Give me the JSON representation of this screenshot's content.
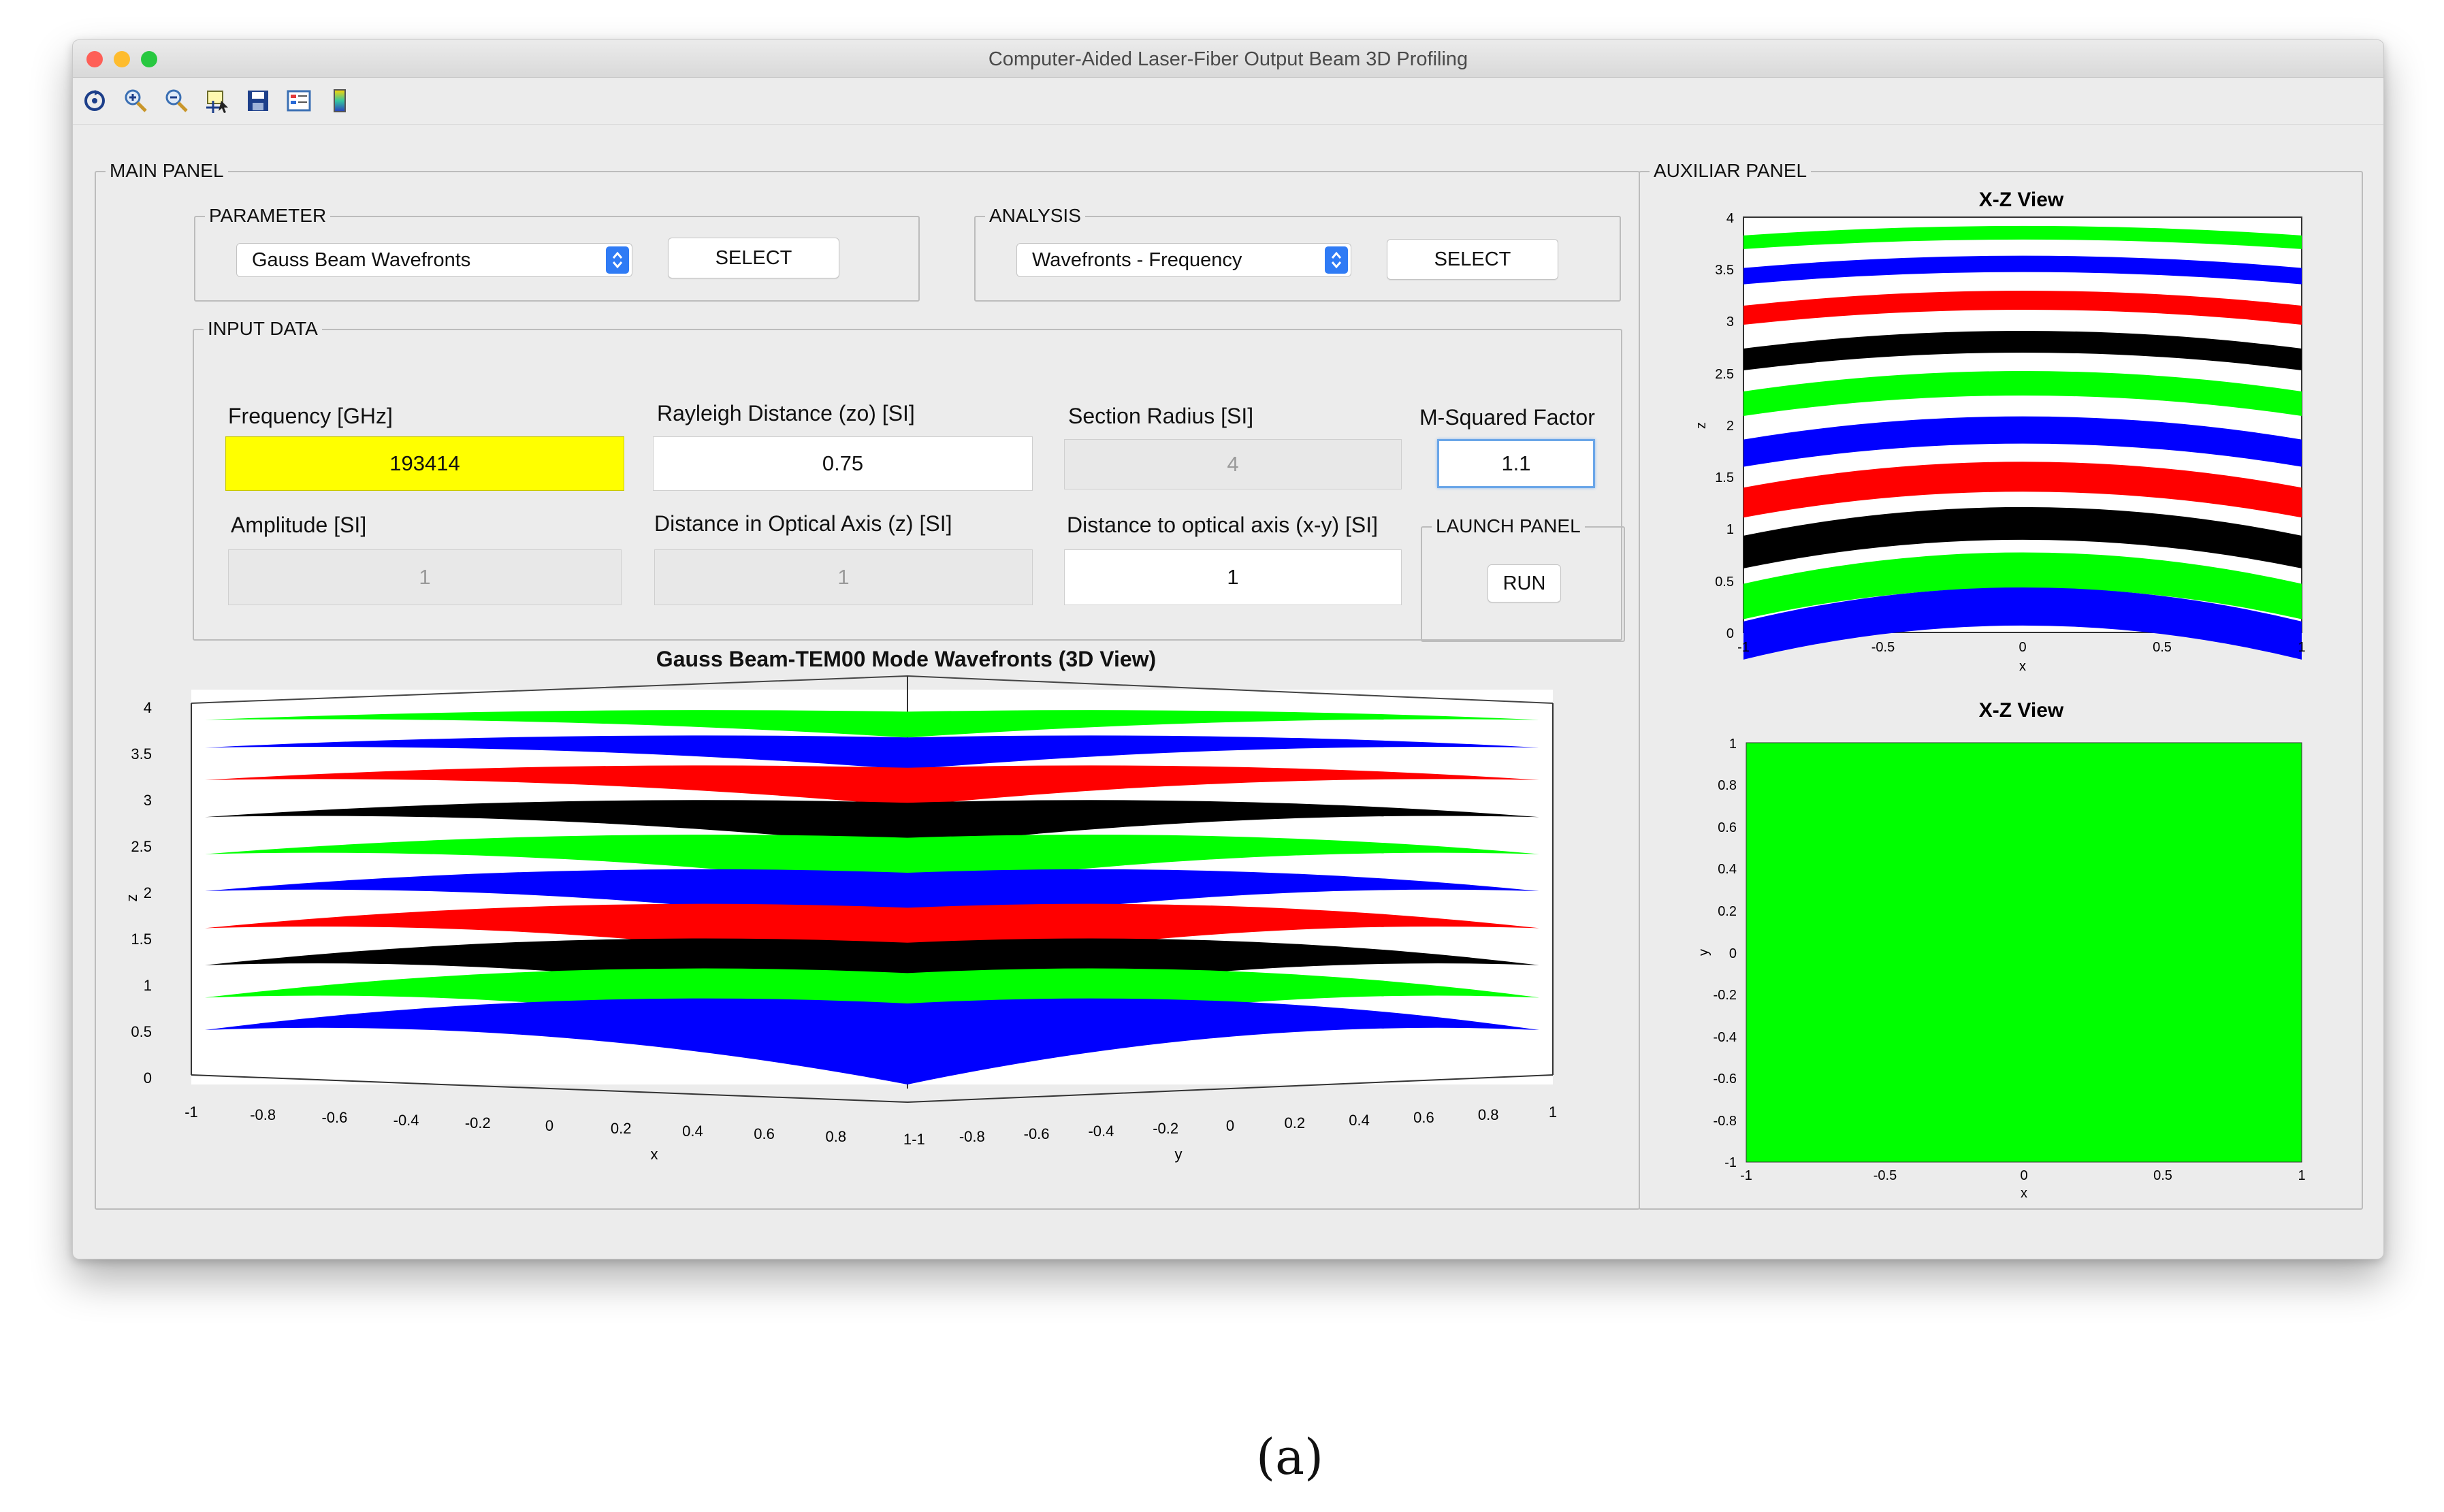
{
  "window": {
    "title": "Computer-Aided Laser-Fiber Output Beam 3D Profiling",
    "traffic_lights": [
      "#fe5f57",
      "#febc2e",
      "#28c840"
    ]
  },
  "toolbar": {
    "items": [
      {
        "name": "rotate-icon"
      },
      {
        "name": "zoom-in-icon"
      },
      {
        "name": "zoom-out-icon"
      },
      {
        "name": "data-cursor-icon"
      },
      {
        "name": "save-icon"
      },
      {
        "name": "legend-icon"
      },
      {
        "name": "colorbar-icon"
      }
    ]
  },
  "main_panel": {
    "title": "MAIN PANEL",
    "parameter": {
      "title": "PARAMETER",
      "selected": "Gauss Beam Wavefronts",
      "button": "SELECT"
    },
    "analysis": {
      "title": "ANALYSIS",
      "selected": "Wavefronts - Frequency",
      "button": "SELECT"
    },
    "input_data": {
      "title": "INPUT DATA",
      "frequency": {
        "label": "Frequency [GHz]",
        "value": "193414"
      },
      "rayleigh": {
        "label": "Rayleigh Distance (zo) [SI]",
        "value": "0.75"
      },
      "section_radius": {
        "label": "Section Radius [SI]",
        "value": "4"
      },
      "m_squared": {
        "label": "M-Squared Factor",
        "value": "1.1"
      },
      "amplitude": {
        "label": "Amplitude [SI]",
        "value": "1"
      },
      "distance_z": {
        "label": "Distance in Optical Axis (z) [SI]",
        "value": "1"
      },
      "distance_xy": {
        "label": "Distance to optical axis (x-y) [SI]",
        "value": "1"
      }
    },
    "launch_panel": {
      "title": "LAUNCH PANEL",
      "button": "RUN"
    },
    "plot3d": {
      "title": "Gauss Beam-TEM00 Mode Wavefronts (3D View)",
      "zlabel": "z",
      "xlabel": "x",
      "ylabel": "y",
      "z_ticks": [
        "4",
        "3.5",
        "3",
        "2.5",
        "2",
        "1.5",
        "1",
        "0.5",
        "0"
      ],
      "x_ticks": [
        "-1",
        "-0.8",
        "-0.6",
        "-0.4",
        "-0.2",
        "0",
        "0.2",
        "0.4",
        "0.6",
        "0.8",
        "1"
      ],
      "y_ticks": [
        "-1",
        "-0.8",
        "-0.6",
        "-0.4",
        "-0.2",
        "0",
        "0.2",
        "0.4",
        "0.6",
        "0.8",
        "1"
      ],
      "colors": [
        "#00ff00",
        "#0000ff",
        "#ff0000",
        "#000000"
      ]
    }
  },
  "auxiliar_panel": {
    "title": "AUXILIAR PANEL",
    "xz_view": {
      "title": "X-Z View",
      "xlabel": "x",
      "ylabel": "z",
      "x_ticks": [
        "-1",
        "-0.5",
        "0",
        "0.5",
        "1"
      ],
      "y_ticks": [
        "4",
        "3.5",
        "3",
        "2.5",
        "2",
        "1.5",
        "1",
        "0.5",
        "0"
      ]
    },
    "xy_view": {
      "title": "X-Z View",
      "xlabel": "x",
      "ylabel": "y",
      "x_ticks": [
        "-1",
        "-0.5",
        "0",
        "0.5",
        "1"
      ],
      "y_ticks": [
        "1",
        "0.8",
        "0.6",
        "0.4",
        "0.2",
        "0",
        "-0.2",
        "-0.4",
        "-0.6",
        "-0.8",
        "-1"
      ],
      "fill": "#00ff00"
    }
  },
  "caption": "(a)"
}
